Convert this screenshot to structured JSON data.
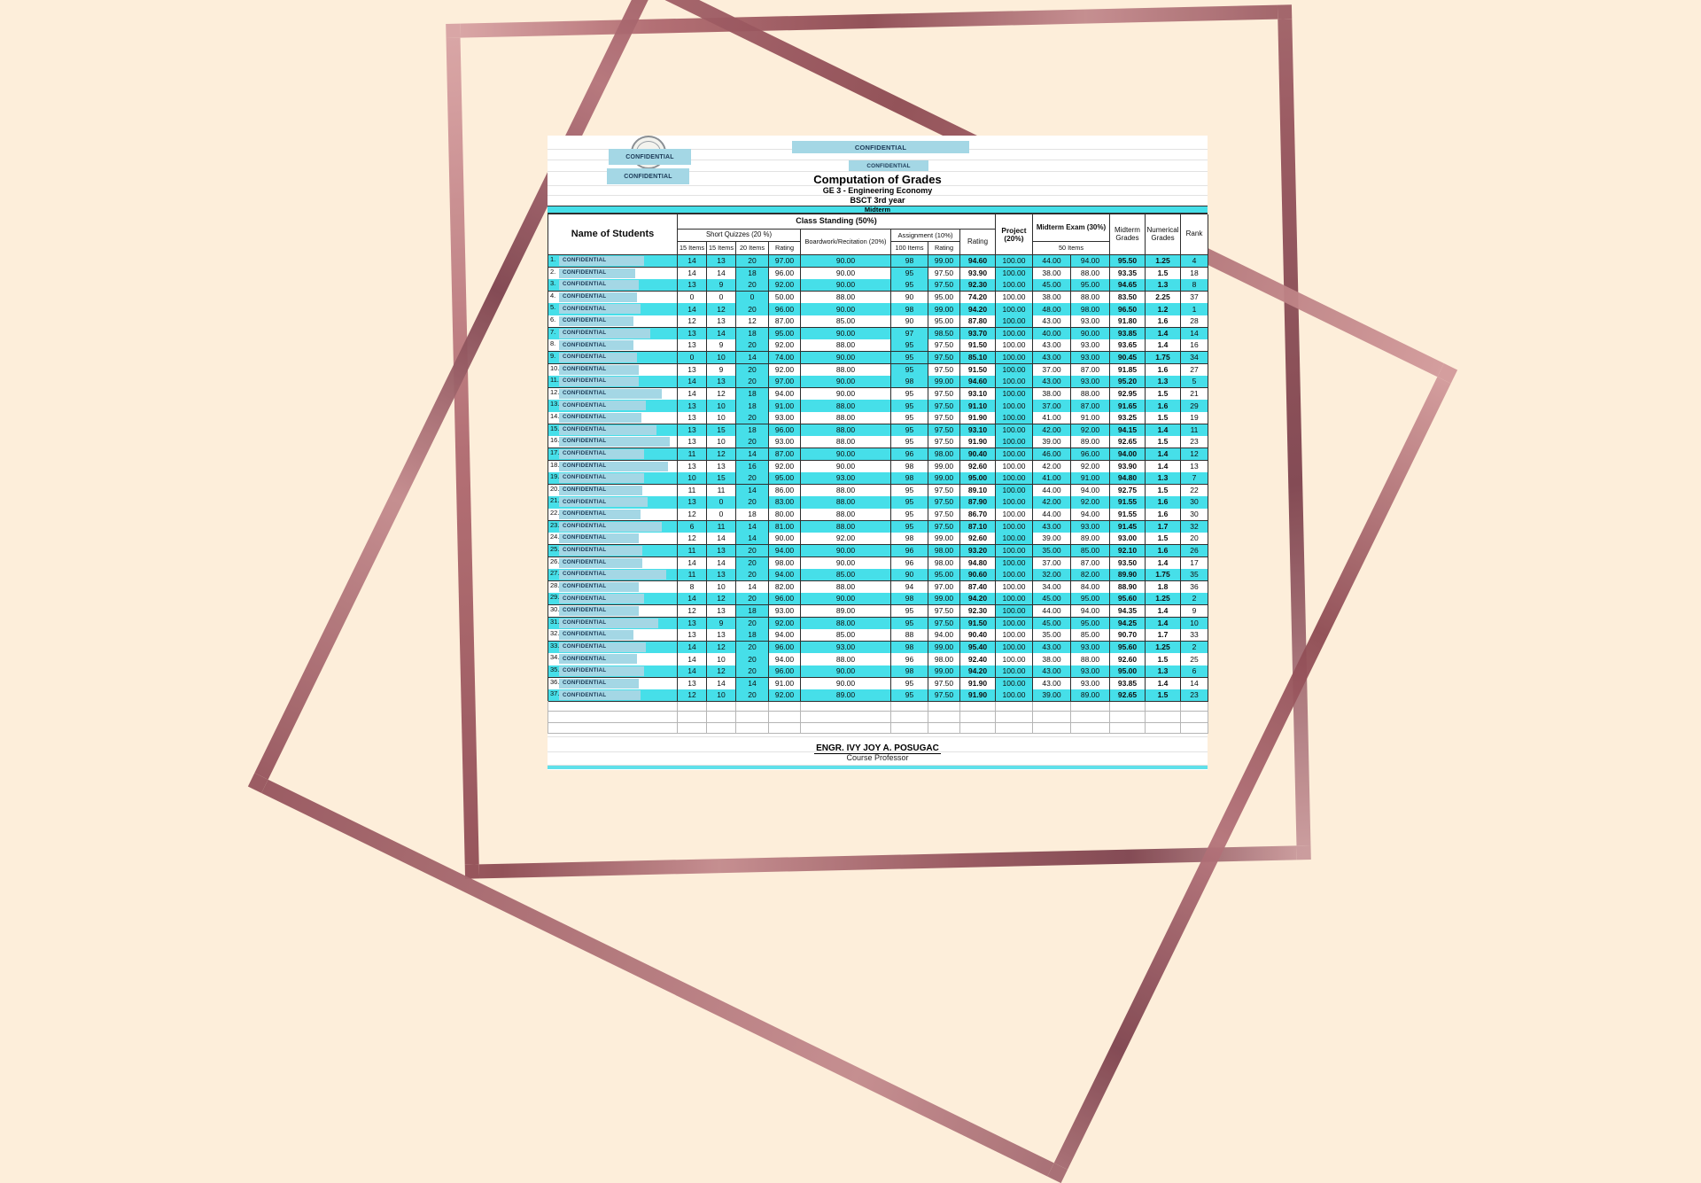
{
  "header": {
    "confidential_top1": "CONFIDENTIAL",
    "confidential_top2": "CONFIDENTIAL",
    "confidential_left1": "CONFIDENTIAL",
    "confidential_left2": "CONFIDENTIAL",
    "title": "Computation of Grades",
    "course": "GE 3 - Engineering Economy",
    "year_level": "BSCT 3rd year",
    "term": "Midterm"
  },
  "columns": {
    "name": "Name of Students",
    "class_standing": "Class Standing (50%)",
    "short_quizzes": "Short Quizzes (20 %)",
    "quiz_items": [
      "15 Items",
      "15 Items",
      "20 Items",
      "Rating"
    ],
    "boardwork": "Boardwork/Recitation (20%)",
    "assignment": "Assignment (10%)",
    "assignment_items": "100 Items",
    "assignment_rating": "Rating",
    "cs_rating": "Rating",
    "project": "Project (20%)",
    "midterm_exam": "Midterm Exam (30%)",
    "exam_items": "50 Items",
    "midterm_grades": "Midterm Grades",
    "numerical_grades": "Numerical Grades",
    "rank": "Rank"
  },
  "redaction_label": "CONFIDENTIAL",
  "rows": [
    {
      "no": "1.",
      "q1": "14",
      "q2": "13",
      "q3": "20",
      "qr": "97.00",
      "bw": "90.00",
      "ai": "98",
      "ar": "99.00",
      "csr": "94.60",
      "pj": "100.00",
      "mes": "44.00",
      "mer": "94.00",
      "mg": "95.50",
      "ng": "1.25",
      "rk": "4"
    },
    {
      "no": "2.",
      "q1": "14",
      "q2": "14",
      "q3": "18",
      "qr": "96.00",
      "bw": "90.00",
      "ai": "95",
      "ar": "97.50",
      "csr": "93.90",
      "pj": "100.00",
      "mes": "38.00",
      "mer": "88.00",
      "mg": "93.35",
      "ng": "1.5",
      "rk": "18"
    },
    {
      "no": "3.",
      "q1": "13",
      "q2": "9",
      "q3": "20",
      "qr": "92.00",
      "bw": "90.00",
      "ai": "95",
      "ar": "97.50",
      "csr": "92.30",
      "pj": "100.00",
      "mes": "45.00",
      "mer": "95.00",
      "mg": "94.65",
      "ng": "1.3",
      "rk": "8"
    },
    {
      "no": "4.",
      "q1": "0",
      "q2": "0",
      "q3": "0",
      "qr": "50.00",
      "bw": "88.00",
      "ai": "90",
      "ar": "95.00",
      "csr": "74.20",
      "pj": "100.00",
      "mes": "38.00",
      "mer": "88.00",
      "mg": "83.50",
      "ng": "2.25",
      "rk": "37"
    },
    {
      "no": "5.",
      "q1": "14",
      "q2": "12",
      "q3": "20",
      "qr": "96.00",
      "bw": "90.00",
      "ai": "98",
      "ar": "99.00",
      "csr": "94.20",
      "pj": "100.00",
      "mes": "48.00",
      "mer": "98.00",
      "mg": "96.50",
      "ng": "1.2",
      "rk": "1"
    },
    {
      "no": "6.",
      "q1": "12",
      "q2": "13",
      "q3": "12",
      "qr": "87.00",
      "bw": "85.00",
      "ai": "90",
      "ar": "95.00",
      "csr": "87.80",
      "pj": "100.00",
      "mes": "43.00",
      "mer": "93.00",
      "mg": "91.80",
      "ng": "1.6",
      "rk": "28"
    },
    {
      "no": "7.",
      "q1": "13",
      "q2": "14",
      "q3": "18",
      "qr": "95.00",
      "bw": "90.00",
      "ai": "97",
      "ar": "98.50",
      "csr": "93.70",
      "pj": "100.00",
      "mes": "40.00",
      "mer": "90.00",
      "mg": "93.85",
      "ng": "1.4",
      "rk": "14"
    },
    {
      "no": "8.",
      "q1": "13",
      "q2": "9",
      "q3": "20",
      "qr": "92.00",
      "bw": "88.00",
      "ai": "95",
      "ar": "97.50",
      "csr": "91.50",
      "pj": "100.00",
      "mes": "43.00",
      "mer": "93.00",
      "mg": "93.65",
      "ng": "1.4",
      "rk": "16"
    },
    {
      "no": "9.",
      "q1": "0",
      "q2": "10",
      "q3": "14",
      "qr": "74.00",
      "bw": "90.00",
      "ai": "95",
      "ar": "97.50",
      "csr": "85.10",
      "pj": "100.00",
      "mes": "43.00",
      "mer": "93.00",
      "mg": "90.45",
      "ng": "1.75",
      "rk": "34"
    },
    {
      "no": "10.",
      "q1": "13",
      "q2": "9",
      "q3": "20",
      "qr": "92.00",
      "bw": "88.00",
      "ai": "95",
      "ar": "97.50",
      "csr": "91.50",
      "pj": "100.00",
      "mes": "37.00",
      "mer": "87.00",
      "mg": "91.85",
      "ng": "1.6",
      "rk": "27"
    },
    {
      "no": "11.",
      "q1": "14",
      "q2": "13",
      "q3": "20",
      "qr": "97.00",
      "bw": "90.00",
      "ai": "98",
      "ar": "99.00",
      "csr": "94.60",
      "pj": "100.00",
      "mes": "43.00",
      "mer": "93.00",
      "mg": "95.20",
      "ng": "1.3",
      "rk": "5"
    },
    {
      "no": "12.",
      "q1": "14",
      "q2": "12",
      "q3": "18",
      "qr": "94.00",
      "bw": "90.00",
      "ai": "95",
      "ar": "97.50",
      "csr": "93.10",
      "pj": "100.00",
      "mes": "38.00",
      "mer": "88.00",
      "mg": "92.95",
      "ng": "1.5",
      "rk": "21"
    },
    {
      "no": "13.",
      "q1": "13",
      "q2": "10",
      "q3": "18",
      "qr": "91.00",
      "bw": "88.00",
      "ai": "95",
      "ar": "97.50",
      "csr": "91.10",
      "pj": "100.00",
      "mes": "37.00",
      "mer": "87.00",
      "mg": "91.65",
      "ng": "1.6",
      "rk": "29"
    },
    {
      "no": "14.",
      "q1": "13",
      "q2": "10",
      "q3": "20",
      "qr": "93.00",
      "bw": "88.00",
      "ai": "95",
      "ar": "97.50",
      "csr": "91.90",
      "pj": "100.00",
      "mes": "41.00",
      "mer": "91.00",
      "mg": "93.25",
      "ng": "1.5",
      "rk": "19"
    },
    {
      "no": "15.",
      "q1": "13",
      "q2": "15",
      "q3": "18",
      "qr": "96.00",
      "bw": "88.00",
      "ai": "95",
      "ar": "97.50",
      "csr": "93.10",
      "pj": "100.00",
      "mes": "42.00",
      "mer": "92.00",
      "mg": "94.15",
      "ng": "1.4",
      "rk": "11"
    },
    {
      "no": "16.",
      "q1": "13",
      "q2": "10",
      "q3": "20",
      "qr": "93.00",
      "bw": "88.00",
      "ai": "95",
      "ar": "97.50",
      "csr": "91.90",
      "pj": "100.00",
      "mes": "39.00",
      "mer": "89.00",
      "mg": "92.65",
      "ng": "1.5",
      "rk": "23"
    },
    {
      "no": "17.",
      "q1": "11",
      "q2": "12",
      "q3": "14",
      "qr": "87.00",
      "bw": "90.00",
      "ai": "96",
      "ar": "98.00",
      "csr": "90.40",
      "pj": "100.00",
      "mes": "46.00",
      "mer": "96.00",
      "mg": "94.00",
      "ng": "1.4",
      "rk": "12"
    },
    {
      "no": "18.",
      "q1": "13",
      "q2": "13",
      "q3": "16",
      "qr": "92.00",
      "bw": "90.00",
      "ai": "98",
      "ar": "99.00",
      "csr": "92.60",
      "pj": "100.00",
      "mes": "42.00",
      "mer": "92.00",
      "mg": "93.90",
      "ng": "1.4",
      "rk": "13"
    },
    {
      "no": "19.",
      "q1": "10",
      "q2": "15",
      "q3": "20",
      "qr": "95.00",
      "bw": "93.00",
      "ai": "98",
      "ar": "99.00",
      "csr": "95.00",
      "pj": "100.00",
      "mes": "41.00",
      "mer": "91.00",
      "mg": "94.80",
      "ng": "1.3",
      "rk": "7"
    },
    {
      "no": "20.",
      "q1": "11",
      "q2": "11",
      "q3": "14",
      "qr": "86.00",
      "bw": "88.00",
      "ai": "95",
      "ar": "97.50",
      "csr": "89.10",
      "pj": "100.00",
      "mes": "44.00",
      "mer": "94.00",
      "mg": "92.75",
      "ng": "1.5",
      "rk": "22"
    },
    {
      "no": "21.",
      "q1": "13",
      "q2": "0",
      "q3": "20",
      "qr": "83.00",
      "bw": "88.00",
      "ai": "95",
      "ar": "97.50",
      "csr": "87.90",
      "pj": "100.00",
      "mes": "42.00",
      "mer": "92.00",
      "mg": "91.55",
      "ng": "1.6",
      "rk": "30"
    },
    {
      "no": "22.",
      "q1": "12",
      "q2": "0",
      "q3": "18",
      "qr": "80.00",
      "bw": "88.00",
      "ai": "95",
      "ar": "97.50",
      "csr": "86.70",
      "pj": "100.00",
      "mes": "44.00",
      "mer": "94.00",
      "mg": "91.55",
      "ng": "1.6",
      "rk": "30"
    },
    {
      "no": "23.",
      "q1": "6",
      "q2": "11",
      "q3": "14",
      "qr": "81.00",
      "bw": "88.00",
      "ai": "95",
      "ar": "97.50",
      "csr": "87.10",
      "pj": "100.00",
      "mes": "43.00",
      "mer": "93.00",
      "mg": "91.45",
      "ng": "1.7",
      "rk": "32"
    },
    {
      "no": "24.",
      "q1": "12",
      "q2": "14",
      "q3": "14",
      "qr": "90.00",
      "bw": "92.00",
      "ai": "98",
      "ar": "99.00",
      "csr": "92.60",
      "pj": "100.00",
      "mes": "39.00",
      "mer": "89.00",
      "mg": "93.00",
      "ng": "1.5",
      "rk": "20"
    },
    {
      "no": "25.",
      "q1": "11",
      "q2": "13",
      "q3": "20",
      "qr": "94.00",
      "bw": "90.00",
      "ai": "96",
      "ar": "98.00",
      "csr": "93.20",
      "pj": "100.00",
      "mes": "35.00",
      "mer": "85.00",
      "mg": "92.10",
      "ng": "1.6",
      "rk": "26"
    },
    {
      "no": "26.",
      "q1": "14",
      "q2": "14",
      "q3": "20",
      "qr": "98.00",
      "bw": "90.00",
      "ai": "96",
      "ar": "98.00",
      "csr": "94.80",
      "pj": "100.00",
      "mes": "37.00",
      "mer": "87.00",
      "mg": "93.50",
      "ng": "1.4",
      "rk": "17"
    },
    {
      "no": "27.",
      "q1": "11",
      "q2": "13",
      "q3": "20",
      "qr": "94.00",
      "bw": "85.00",
      "ai": "90",
      "ar": "95.00",
      "csr": "90.60",
      "pj": "100.00",
      "mes": "32.00",
      "mer": "82.00",
      "mg": "89.90",
      "ng": "1.75",
      "rk": "35"
    },
    {
      "no": "28.",
      "q1": "8",
      "q2": "10",
      "q3": "14",
      "qr": "82.00",
      "bw": "88.00",
      "ai": "94",
      "ar": "97.00",
      "csr": "87.40",
      "pj": "100.00",
      "mes": "34.00",
      "mer": "84.00",
      "mg": "88.90",
      "ng": "1.8",
      "rk": "36"
    },
    {
      "no": "29.",
      "q1": "14",
      "q2": "12",
      "q3": "20",
      "qr": "96.00",
      "bw": "90.00",
      "ai": "98",
      "ar": "99.00",
      "csr": "94.20",
      "pj": "100.00",
      "mes": "45.00",
      "mer": "95.00",
      "mg": "95.60",
      "ng": "1.25",
      "rk": "2"
    },
    {
      "no": "30.",
      "q1": "12",
      "q2": "13",
      "q3": "18",
      "qr": "93.00",
      "bw": "89.00",
      "ai": "95",
      "ar": "97.50",
      "csr": "92.30",
      "pj": "100.00",
      "mes": "44.00",
      "mer": "94.00",
      "mg": "94.35",
      "ng": "1.4",
      "rk": "9"
    },
    {
      "no": "31.",
      "q1": "13",
      "q2": "9",
      "q3": "20",
      "qr": "92.00",
      "bw": "88.00",
      "ai": "95",
      "ar": "97.50",
      "csr": "91.50",
      "pj": "100.00",
      "mes": "45.00",
      "mer": "95.00",
      "mg": "94.25",
      "ng": "1.4",
      "rk": "10"
    },
    {
      "no": "32.",
      "q1": "13",
      "q2": "13",
      "q3": "18",
      "qr": "94.00",
      "bw": "85.00",
      "ai": "88",
      "ar": "94.00",
      "csr": "90.40",
      "pj": "100.00",
      "mes": "35.00",
      "mer": "85.00",
      "mg": "90.70",
      "ng": "1.7",
      "rk": "33"
    },
    {
      "no": "33.",
      "q1": "14",
      "q2": "12",
      "q3": "20",
      "qr": "96.00",
      "bw": "93.00",
      "ai": "98",
      "ar": "99.00",
      "csr": "95.40",
      "pj": "100.00",
      "mes": "43.00",
      "mer": "93.00",
      "mg": "95.60",
      "ng": "1.25",
      "rk": "2"
    },
    {
      "no": "34.",
      "q1": "14",
      "q2": "10",
      "q3": "20",
      "qr": "94.00",
      "bw": "88.00",
      "ai": "96",
      "ar": "98.00",
      "csr": "92.40",
      "pj": "100.00",
      "mes": "38.00",
      "mer": "88.00",
      "mg": "92.60",
      "ng": "1.5",
      "rk": "25"
    },
    {
      "no": "35.",
      "q1": "14",
      "q2": "12",
      "q3": "20",
      "qr": "96.00",
      "bw": "90.00",
      "ai": "98",
      "ar": "99.00",
      "csr": "94.20",
      "pj": "100.00",
      "mes": "43.00",
      "mer": "93.00",
      "mg": "95.00",
      "ng": "1.3",
      "rk": "6"
    },
    {
      "no": "36.",
      "q1": "13",
      "q2": "14",
      "q3": "14",
      "qr": "91.00",
      "bw": "90.00",
      "ai": "95",
      "ar": "97.50",
      "csr": "91.90",
      "pj": "100.00",
      "mes": "43.00",
      "mer": "93.00",
      "mg": "93.85",
      "ng": "1.4",
      "rk": "14"
    },
    {
      "no": "37.",
      "q1": "12",
      "q2": "10",
      "q3": "20",
      "qr": "92.00",
      "bw": "89.00",
      "ai": "95",
      "ar": "97.50",
      "csr": "91.90",
      "pj": "100.00",
      "mes": "39.00",
      "mer": "89.00",
      "mg": "92.65",
      "ng": "1.5",
      "rk": "23"
    }
  ],
  "footer": {
    "professor": "ENGR. IVY JOY A. POSUGAC",
    "role": "Course Professor"
  },
  "colors": {
    "row_cyan": "#46dfe9",
    "redaction_blue": "#a4d7e5",
    "frame_rose": "#a05a60",
    "background": "#fdeeda",
    "bottom_strip": "#5fe0ea"
  }
}
